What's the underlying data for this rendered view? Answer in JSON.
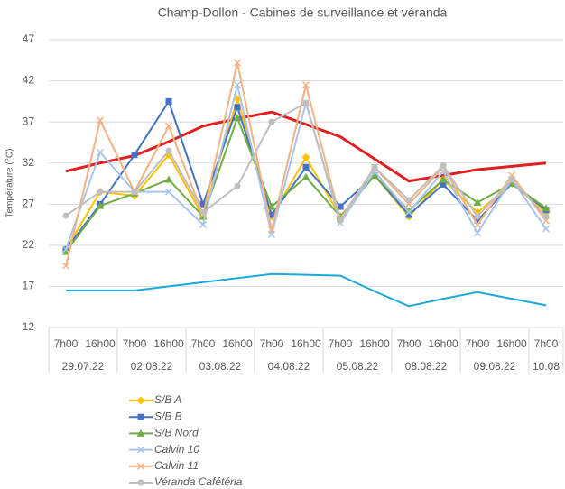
{
  "chart_data": {
    "type": "line",
    "title": "Champ-Dollon - Cabines de surveillance et véranda",
    "ylabel": "Température (°C)",
    "categories": [
      "7h00",
      "16h00",
      "7h00",
      "16h00",
      "7h00",
      "16h00",
      "7h00",
      "16h00",
      "7h00",
      "16h00",
      "7h00",
      "16h00",
      "7h00",
      "16h00",
      "7h00"
    ],
    "groups": [
      {
        "name": "29.07.22",
        "size": 2
      },
      {
        "name": "02.08.22",
        "size": 2
      },
      {
        "name": "03.08.22",
        "size": 2
      },
      {
        "name": "04.08.22",
        "size": 2
      },
      {
        "name": "05.08.22",
        "size": 2
      },
      {
        "name": "08.08.22",
        "size": 2
      },
      {
        "name": "09.08.22",
        "size": 2
      },
      {
        "name": "10.08",
        "size": 1
      }
    ],
    "ylim": [
      12,
      47
    ],
    "yticks": [
      12,
      17,
      22,
      27,
      32,
      37,
      42,
      47
    ],
    "grid": true,
    "series": [
      {
        "color": "#1BA8DC",
        "marker": "none",
        "line_width": 2,
        "values": [
          16.5,
          16.5,
          16.5,
          17,
          17.5,
          18,
          18.5,
          18.4,
          18.3,
          16.4,
          14.6,
          15.5,
          16.3,
          15.5,
          14.7
        ]
      },
      {
        "color": "#E02020",
        "marker": "none",
        "line_width": 3,
        "values": [
          31,
          32,
          32.9,
          34.6,
          36.5,
          37.4,
          38.2,
          36.7,
          35.2,
          32.5,
          29.8,
          30.5,
          31.2,
          31.6,
          32
        ]
      },
      {
        "name": "S/B A",
        "color": "#FFC000",
        "marker": "diamond",
        "line_width": 2,
        "values": [
          21.5,
          28.5,
          28,
          33,
          25.5,
          39.8,
          25.5,
          32.7,
          25.5,
          30.5,
          25.5,
          30,
          26,
          29.5,
          26
        ]
      },
      {
        "name": "S/B B",
        "color": "#4472C4",
        "marker": "square",
        "line_width": 2,
        "values": [
          21.5,
          27,
          33,
          39.5,
          27,
          38.8,
          25.7,
          31.5,
          26.7,
          30.5,
          25.7,
          29.4,
          25,
          29.5,
          26.3
        ]
      },
      {
        "name": "S/B Nord",
        "color": "#70AD47",
        "marker": "triangle",
        "line_width": 2,
        "values": [
          21.2,
          26.8,
          28.3,
          30,
          25.5,
          37.5,
          26.7,
          30.3,
          25.5,
          30.5,
          26.2,
          30,
          27.2,
          29.5,
          26.5
        ]
      },
      {
        "name": "Calvin 10",
        "color": "#A9C4EB",
        "marker": "x",
        "line_width": 2,
        "values": [
          21.5,
          33.3,
          28.5,
          28.5,
          24.5,
          41.5,
          23.3,
          39.3,
          24.7,
          31,
          26,
          31,
          23.5,
          30,
          24
        ]
      },
      {
        "name": "Calvin 11",
        "color": "#F4B183",
        "marker": "x",
        "line_width": 2,
        "values": [
          19.5,
          37.2,
          28.5,
          36.5,
          25.7,
          44.2,
          23.9,
          41.5,
          25.2,
          31.5,
          27,
          31.5,
          24.5,
          30.5,
          25
        ]
      },
      {
        "name": "Véranda Cafétéria",
        "color": "#BFBFBF",
        "marker": "circle",
        "line_width": 2,
        "values": [
          25.6,
          28.5,
          28.5,
          33.5,
          26,
          29.2,
          37,
          39.3,
          25,
          31.5,
          27.5,
          31.7,
          25.5,
          30,
          25.5
        ]
      }
    ]
  }
}
